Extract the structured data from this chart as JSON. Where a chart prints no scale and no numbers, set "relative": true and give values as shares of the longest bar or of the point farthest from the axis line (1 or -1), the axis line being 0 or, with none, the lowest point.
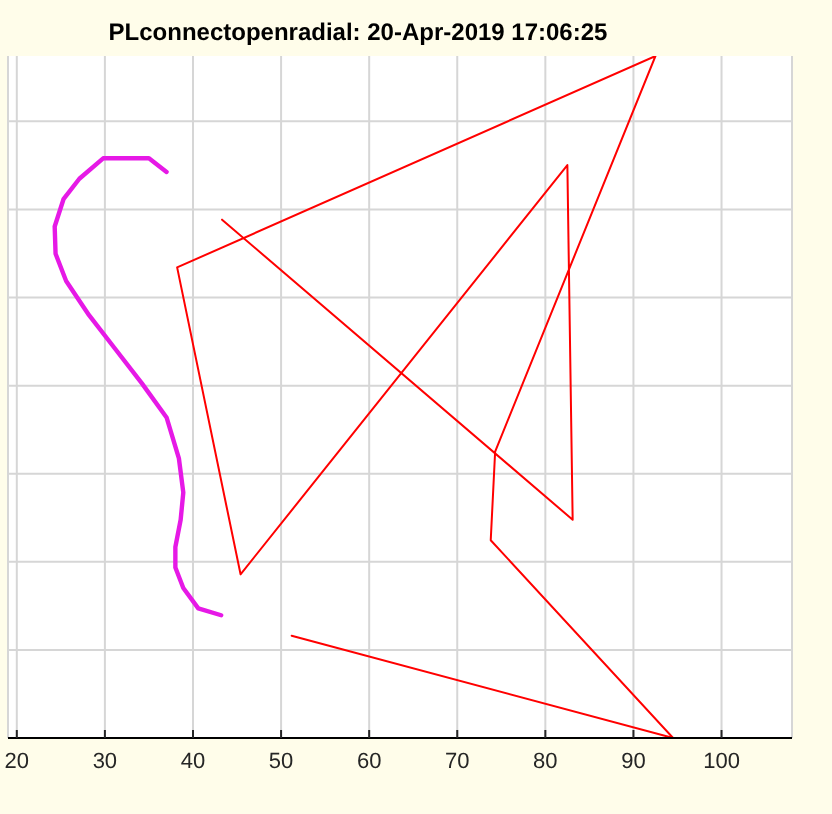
{
  "chart_data": {
    "type": "line",
    "title": "PLconnectopenradial: 20-Apr-2019 17:06:25",
    "relative": true,
    "xlim": [
      19,
      108
    ],
    "xticks": [
      20,
      30,
      40,
      50,
      60,
      70,
      80,
      90,
      100
    ],
    "grid": true,
    "tick_labels": "x",
    "series": [
      {
        "color": "#ff0000",
        "x": [
          43.3,
          83.1,
          82.5,
          45.4,
          38.2,
          92.5,
          74.3,
          73.8,
          94.5,
          51.2
        ],
        "values": [
          0.76,
          0.32,
          0.84,
          0.24,
          0.69,
          1,
          0.42,
          0.29,
          0,
          0.15
        ]
      },
      {
        "color": "#e619e6",
        "x": [
          37.0,
          35.0,
          32.4,
          29.8,
          27.1,
          25.3,
          24.3,
          24.4,
          25.6,
          28.2,
          31.2,
          34.2,
          37.0,
          38.4,
          38.9,
          38.6,
          38.0,
          38.0,
          38.9,
          40.6,
          43.2
        ],
        "values": [
          0.83,
          0.85,
          0.85,
          0.85,
          0.82,
          0.79,
          0.75,
          0.71,
          0.67,
          0.62,
          0.57,
          0.52,
          0.47,
          0.41,
          0.36,
          0.32,
          0.28,
          0.25,
          0.22,
          0.19,
          0.18
        ]
      }
    ]
  }
}
